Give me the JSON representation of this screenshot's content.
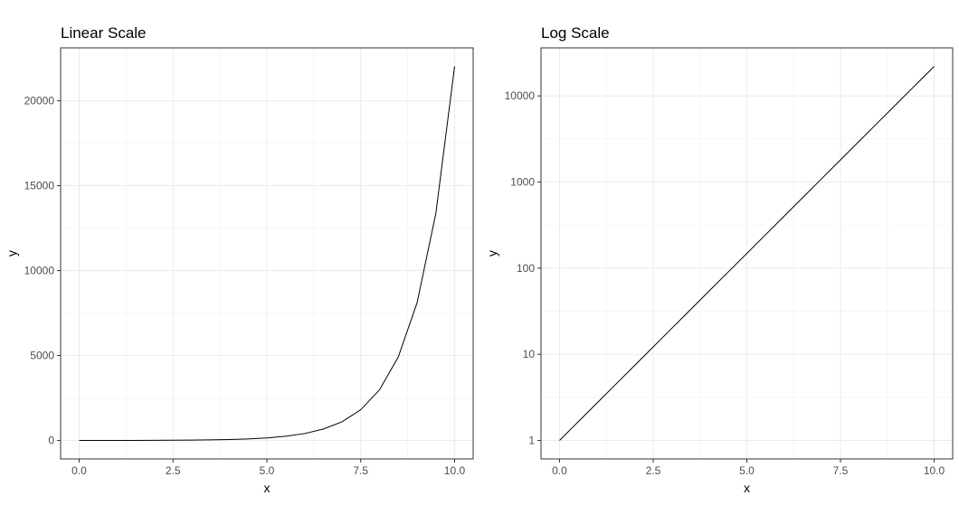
{
  "chart_data": [
    {
      "type": "line",
      "title": "Linear Scale",
      "xlabel": "x",
      "ylabel": "y",
      "xlim": [
        0,
        10
      ],
      "ylim": [
        0,
        22026.47
      ],
      "y_scale": "linear",
      "grid": true,
      "x_ticks": [
        0,
        2.5,
        5,
        7.5,
        10
      ],
      "x_tick_labels": [
        "0.0",
        "2.5",
        "5.0",
        "7.5",
        "10.0"
      ],
      "y_ticks": [
        0,
        5000,
        10000,
        15000,
        20000
      ],
      "y_tick_labels": [
        "0",
        "5000",
        "10000",
        "15000",
        "20000"
      ],
      "x": [
        0,
        0.5,
        1,
        1.5,
        2,
        2.5,
        3,
        3.5,
        4,
        4.5,
        5,
        5.5,
        6,
        6.5,
        7,
        7.5,
        8,
        8.5,
        9,
        9.5,
        10
      ],
      "y": [
        1,
        1.65,
        2.72,
        4.48,
        7.39,
        12.18,
        20.09,
        33.12,
        54.6,
        90.02,
        148.41,
        244.69,
        403.43,
        665.14,
        1096.63,
        1808.04,
        2980.96,
        4914.77,
        8103.08,
        13359.73,
        22026.47
      ]
    },
    {
      "type": "line",
      "title": "Log Scale",
      "xlabel": "x",
      "ylabel": "y",
      "xlim": [
        0,
        10
      ],
      "ylim": [
        1,
        22026.47
      ],
      "y_scale": "log",
      "grid": true,
      "x_ticks": [
        0,
        2.5,
        5,
        7.5,
        10
      ],
      "x_tick_labels": [
        "0.0",
        "2.5",
        "5.0",
        "7.5",
        "10.0"
      ],
      "y_ticks": [
        1,
        10,
        100,
        1000,
        10000
      ],
      "y_tick_labels": [
        "1",
        "10",
        "100",
        "1000",
        "10000"
      ],
      "x": [
        0,
        0.5,
        1,
        1.5,
        2,
        2.5,
        3,
        3.5,
        4,
        4.5,
        5,
        5.5,
        6,
        6.5,
        7,
        7.5,
        8,
        8.5,
        9,
        9.5,
        10
      ],
      "y": [
        1,
        1.65,
        2.72,
        4.48,
        7.39,
        12.18,
        20.09,
        33.12,
        54.6,
        90.02,
        148.41,
        244.69,
        403.43,
        665.14,
        1096.63,
        1808.04,
        2980.96,
        4914.77,
        8103.08,
        13359.73,
        22026.47
      ]
    }
  ]
}
